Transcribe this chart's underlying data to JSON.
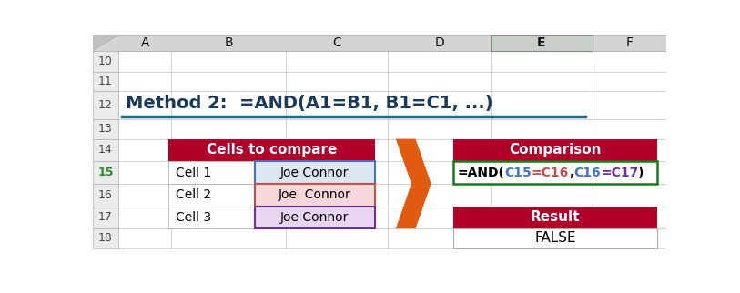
{
  "title": "Method 2:  =AND(A1=B1, B1=C1, ...)",
  "title_color": "#1a3a5c",
  "title_underline_color": "#1a6b8a",
  "bg_color": "#ffffff",
  "header_bg": "#b0002a",
  "header_text_color": "#ffffff",
  "col_headers": [
    "A",
    "B",
    "C",
    "D",
    "E",
    "F"
  ],
  "row_headers": [
    "10",
    "11",
    "12",
    "13",
    "14",
    "15",
    "16",
    "17",
    "18"
  ],
  "cells_header": "Cells to compare",
  "comparison_header": "Comparison",
  "result_header": "Result",
  "result_value": "FALSE",
  "rows_left": [
    [
      "Cell 1",
      "Joe Connor"
    ],
    [
      "Cell 2",
      "Joe  Connor"
    ],
    [
      "Cell 3",
      "Joe Connor"
    ]
  ],
  "arrow_color": "#e05a10",
  "cell15_bg": "#dce6f1",
  "cell16_bg": "#f8d7da",
  "cell17_bg": "#e8d5f0",
  "col_header_bg": "#d4d4d4",
  "col_header_E_bg": "#c8cfc8",
  "row_header_bg": "#ebebeb",
  "grid_color": "#c0c0c0",
  "border_blue": "#4472c4",
  "border_red": "#c0504d",
  "border_purple": "#7030a0",
  "green_border": "#1a7a1a",
  "formula_parts": [
    [
      "=AND(",
      "#000000"
    ],
    [
      "C15",
      "#4472c4"
    ],
    [
      "=C16",
      "#c0504d"
    ],
    [
      ",",
      "#000000"
    ],
    [
      "C16",
      "#4472c4"
    ],
    [
      "=C17",
      "#7030a0"
    ],
    [
      ")",
      "#000000"
    ]
  ]
}
